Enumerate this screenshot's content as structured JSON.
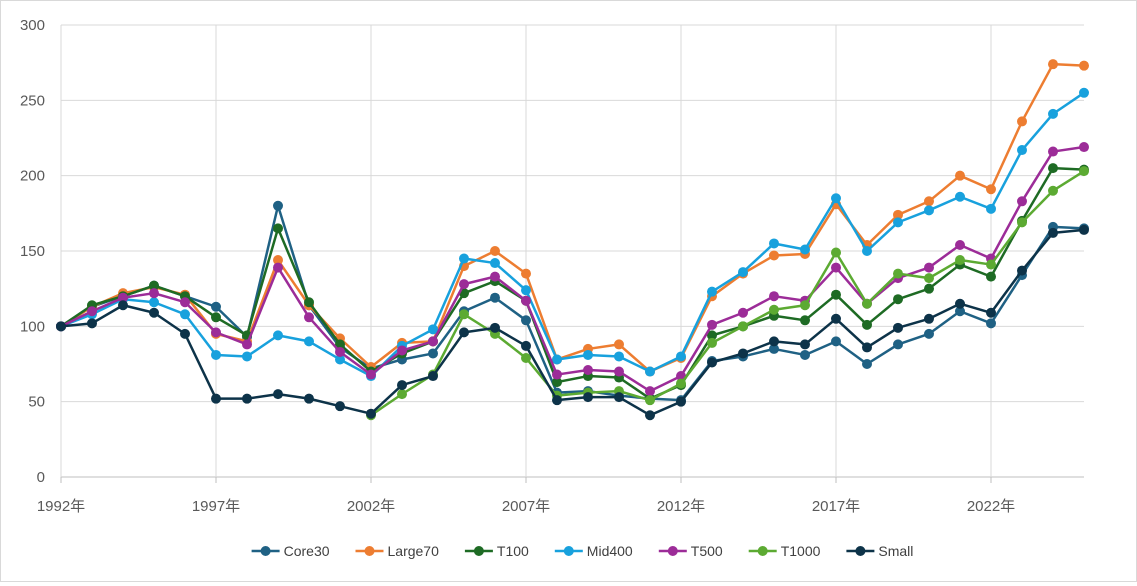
{
  "chart_data": {
    "type": "line",
    "title": "",
    "xlabel": "",
    "ylabel": "",
    "ylim": [
      0,
      300
    ],
    "y_ticks": [
      "0",
      "50",
      "100",
      "150",
      "200",
      "250",
      "300"
    ],
    "x_tick_years": [
      1992,
      1997,
      2002,
      2007,
      2012,
      2017,
      2022
    ],
    "x_tick_labels": [
      "1992年",
      "1997年",
      "2002年",
      "2007年",
      "2012年",
      "2017年",
      "2022年"
    ],
    "x": [
      1992,
      1993,
      1994,
      1995,
      1996,
      1997,
      1998,
      1999,
      2000,
      2001,
      2002,
      2003,
      2004,
      2005,
      2006,
      2007,
      2008,
      2009,
      2010,
      2011,
      2012,
      2013,
      2014,
      2015,
      2016,
      2017,
      2018,
      2019,
      2020,
      2021,
      2022,
      2023,
      2024,
      2025
    ],
    "grid": "vertical-and-horizontal",
    "legend_position": "bottom",
    "series": [
      {
        "name": "Core30",
        "color": "#1f6184",
        "values": [
          100,
          113,
          120,
          127,
          120,
          113,
          93,
          180,
          114,
          86,
          72,
          78,
          82,
          110,
          119,
          104,
          56,
          57,
          54,
          52,
          51,
          77,
          80,
          85,
          81,
          90,
          75,
          88,
          95,
          110,
          102,
          134,
          166,
          165
        ]
      },
      {
        "name": "Large70",
        "color": "#ed7d31",
        "values": [
          100,
          113,
          122,
          126,
          121,
          95,
          90,
          144,
          114,
          92,
          73,
          89,
          90,
          140,
          150,
          135,
          78,
          85,
          88,
          70,
          79,
          120,
          135,
          147,
          148,
          181,
          154,
          174,
          183,
          200,
          191,
          236,
          274,
          273
        ]
      },
      {
        "name": "T100",
        "color": "#1e6b24",
        "values": [
          100,
          114,
          120,
          127,
          120,
          106,
          94,
          165,
          116,
          88,
          70,
          82,
          90,
          122,
          130,
          117,
          63,
          67,
          66,
          52,
          61,
          94,
          100,
          107,
          104,
          121,
          101,
          118,
          125,
          141,
          133,
          170,
          205,
          204
        ]
      },
      {
        "name": "Mid400",
        "color": "#18a1dd",
        "values": [
          100,
          108,
          118,
          116,
          108,
          81,
          80,
          94,
          90,
          78,
          67,
          87,
          98,
          145,
          142,
          124,
          78,
          81,
          80,
          70,
          80,
          123,
          136,
          155,
          151,
          185,
          150,
          169,
          177,
          186,
          178,
          217,
          241,
          255
        ]
      },
      {
        "name": "T500",
        "color": "#9c2c98",
        "values": [
          100,
          110,
          119,
          122,
          116,
          96,
          88,
          139,
          106,
          83,
          68,
          84,
          90,
          128,
          133,
          117,
          68,
          71,
          70,
          57,
          67,
          101,
          109,
          120,
          117,
          139,
          115,
          132,
          139,
          154,
          145,
          183,
          216,
          219
        ]
      },
      {
        "name": "T1000",
        "color": "#5caa32",
        "values": [
          null,
          null,
          null,
          null,
          null,
          null,
          null,
          null,
          null,
          null,
          41,
          55,
          68,
          108,
          95,
          79,
          54,
          56,
          57,
          51,
          62,
          89,
          100,
          111,
          114,
          149,
          115,
          135,
          132,
          144,
          141,
          169,
          190,
          203
        ]
      },
      {
        "name": "Small",
        "color": "#0d3349",
        "values": [
          100,
          102,
          114,
          109,
          95,
          52,
          52,
          55,
          52,
          47,
          42,
          61,
          67,
          96,
          99,
          87,
          51,
          53,
          53,
          41,
          50,
          76,
          82,
          90,
          88,
          105,
          86,
          99,
          105,
          115,
          109,
          137,
          162,
          164
        ]
      }
    ]
  }
}
